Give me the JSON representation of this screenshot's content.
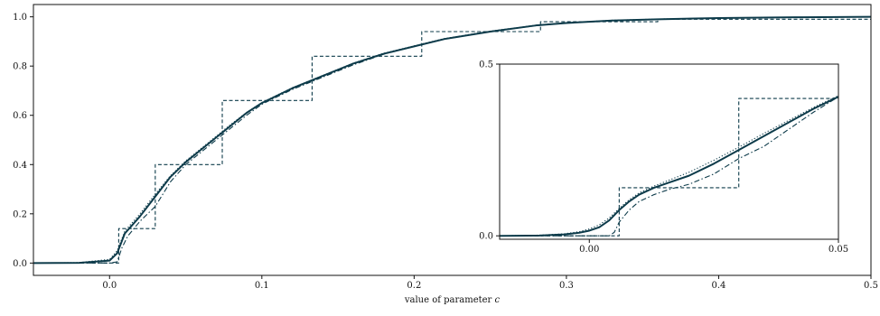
{
  "chart_data": [
    {
      "type": "line",
      "role": "main",
      "xlabel": "value of parameter c",
      "ylabel": "",
      "xlim": [
        -0.05,
        0.5
      ],
      "ylim": [
        -0.05,
        1.05
      ],
      "xticks": [
        {
          "v": 0.0,
          "label": "0.0"
        },
        {
          "v": 0.1,
          "label": "0.1"
        },
        {
          "v": 0.2,
          "label": "0.2"
        },
        {
          "v": 0.3,
          "label": "0.3"
        },
        {
          "v": 0.4,
          "label": "0.4"
        },
        {
          "v": 0.5,
          "label": "0.5"
        }
      ],
      "yticks": [
        {
          "v": 0.0,
          "label": "0.0"
        },
        {
          "v": 0.2,
          "label": "0.2"
        },
        {
          "v": 0.4,
          "label": "0.4"
        },
        {
          "v": 0.6,
          "label": "0.6"
        },
        {
          "v": 0.8,
          "label": "0.8"
        },
        {
          "v": 1.0,
          "label": "1.0"
        }
      ],
      "grid": false,
      "series": [
        {
          "style": "solid",
          "x": [
            -0.05,
            -0.02,
            0.0,
            0.005,
            0.01,
            0.02,
            0.03,
            0.04,
            0.05,
            0.06,
            0.07,
            0.08,
            0.09,
            0.1,
            0.12,
            0.14,
            0.16,
            0.18,
            0.2,
            0.22,
            0.25,
            0.28,
            0.3,
            0.33,
            0.36,
            0.4,
            0.45,
            0.5
          ],
          "y": [
            0.0,
            0.001,
            0.01,
            0.04,
            0.12,
            0.19,
            0.27,
            0.35,
            0.41,
            0.46,
            0.51,
            0.56,
            0.61,
            0.65,
            0.71,
            0.76,
            0.81,
            0.85,
            0.88,
            0.91,
            0.94,
            0.965,
            0.975,
            0.985,
            0.99,
            0.995,
            0.998,
            1.0
          ]
        },
        {
          "style": "dotted",
          "x": [
            -0.05,
            -0.02,
            0.0,
            0.005,
            0.01,
            0.02,
            0.03,
            0.04,
            0.05,
            0.06,
            0.07,
            0.08,
            0.09,
            0.1,
            0.12,
            0.14,
            0.16,
            0.18,
            0.2,
            0.22,
            0.25,
            0.28,
            0.3,
            0.33,
            0.36,
            0.4,
            0.45,
            0.5
          ],
          "y": [
            0.0,
            0.002,
            0.015,
            0.05,
            0.13,
            0.2,
            0.28,
            0.355,
            0.415,
            0.465,
            0.515,
            0.565,
            0.612,
            0.652,
            0.712,
            0.762,
            0.812,
            0.852,
            0.882,
            0.912,
            0.942,
            0.966,
            0.976,
            0.986,
            0.991,
            0.995,
            0.998,
            1.0
          ]
        },
        {
          "style": "dashdot",
          "x": [
            -0.05,
            0.0,
            0.005,
            0.008,
            0.012,
            0.02,
            0.03,
            0.04,
            0.05,
            0.06,
            0.07,
            0.08,
            0.09,
            0.1,
            0.12,
            0.14,
            0.16,
            0.18,
            0.2,
            0.22,
            0.25,
            0.28,
            0.3,
            0.33,
            0.36,
            0.4,
            0.45,
            0.5
          ],
          "y": [
            0.0,
            0.0,
            0.005,
            0.06,
            0.11,
            0.17,
            0.23,
            0.33,
            0.4,
            0.45,
            0.5,
            0.55,
            0.6,
            0.645,
            0.705,
            0.755,
            0.805,
            0.848,
            0.88,
            0.91,
            0.94,
            0.964,
            0.975,
            0.985,
            0.99,
            0.995,
            0.998,
            1.0
          ]
        },
        {
          "style": "dashed",
          "x": [
            -0.05,
            0.006,
            0.006,
            0.03,
            0.03,
            0.074,
            0.074,
            0.133,
            0.133,
            0.205,
            0.205,
            0.283,
            0.283,
            0.36,
            0.36,
            0.5
          ],
          "y": [
            0.0,
            0.0,
            0.14,
            0.14,
            0.4,
            0.4,
            0.66,
            0.66,
            0.84,
            0.84,
            0.94,
            0.94,
            0.98,
            0.98,
            0.99,
            0.99
          ]
        }
      ]
    },
    {
      "type": "line",
      "role": "inset",
      "xlim": [
        -0.018,
        0.05
      ],
      "ylim": [
        -0.01,
        0.5
      ],
      "xticks": [
        {
          "v": 0.0,
          "label": "0.00"
        },
        {
          "v": 0.05,
          "label": "0.05"
        }
      ],
      "yticks": [
        {
          "v": 0.0,
          "label": "0.0"
        },
        {
          "v": 0.5,
          "label": "0.5"
        }
      ],
      "series": [
        {
          "style": "solid",
          "x": [
            -0.018,
            -0.01,
            -0.005,
            -0.002,
            0.0,
            0.002,
            0.004,
            0.006,
            0.008,
            0.01,
            0.013,
            0.016,
            0.02,
            0.025,
            0.03,
            0.035,
            0.04,
            0.045,
            0.05
          ],
          "y": [
            0.0,
            0.001,
            0.004,
            0.009,
            0.015,
            0.025,
            0.045,
            0.075,
            0.1,
            0.12,
            0.14,
            0.155,
            0.175,
            0.21,
            0.25,
            0.29,
            0.33,
            0.37,
            0.405
          ]
        },
        {
          "style": "dotted",
          "x": [
            -0.018,
            -0.01,
            -0.005,
            -0.002,
            0.0,
            0.002,
            0.004,
            0.006,
            0.008,
            0.01,
            0.013,
            0.016,
            0.02,
            0.025,
            0.03,
            0.035,
            0.04,
            0.045,
            0.05
          ],
          "y": [
            0.0,
            0.002,
            0.006,
            0.012,
            0.02,
            0.032,
            0.052,
            0.08,
            0.105,
            0.125,
            0.145,
            0.162,
            0.185,
            0.22,
            0.258,
            0.298,
            0.336,
            0.374,
            0.408
          ]
        },
        {
          "style": "dashdot",
          "x": [
            -0.018,
            0.004,
            0.005,
            0.006,
            0.008,
            0.01,
            0.013,
            0.016,
            0.02,
            0.025,
            0.03,
            0.035,
            0.04,
            0.045,
            0.05
          ],
          "y": [
            0.0,
            0.0,
            0.01,
            0.04,
            0.075,
            0.1,
            0.12,
            0.135,
            0.15,
            0.18,
            0.225,
            0.26,
            0.31,
            0.36,
            0.405
          ]
        },
        {
          "style": "dashed",
          "x": [
            -0.018,
            0.006,
            0.006,
            0.03,
            0.03,
            0.05
          ],
          "y": [
            0.0,
            0.0,
            0.14,
            0.14,
            0.4,
            0.4
          ]
        }
      ]
    }
  ]
}
